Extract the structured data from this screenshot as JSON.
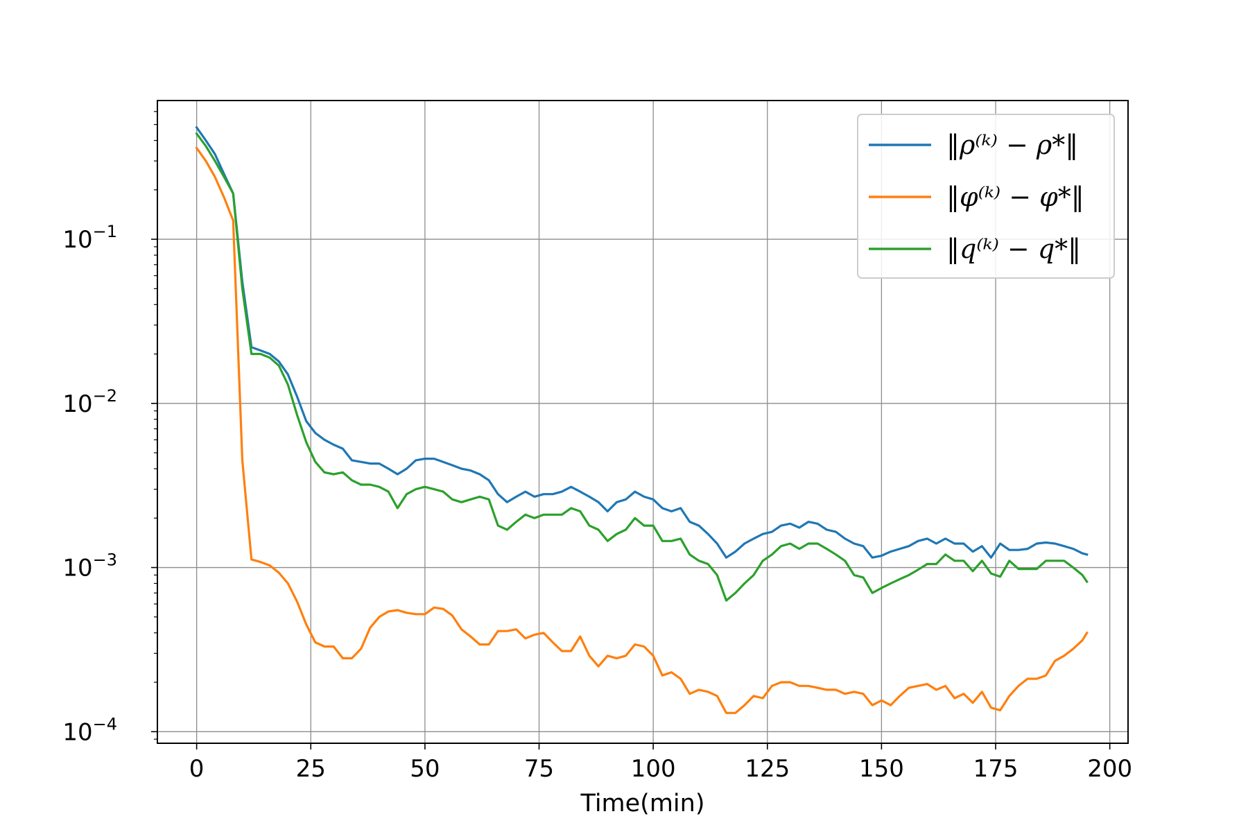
{
  "chart_data": {
    "type": "line",
    "title": "",
    "xlabel": "Time(min)",
    "ylabel": "",
    "xlim": [
      -8.6,
      204
    ],
    "ylim": [
      8.5e-05,
      0.7
    ],
    "yscale": "log",
    "xticks": [
      0,
      25,
      50,
      75,
      100,
      125,
      150,
      175,
      200
    ],
    "yticks": [
      {
        "value": 0.1,
        "base": "10",
        "exp": "−1"
      },
      {
        "value": 0.01,
        "base": "10",
        "exp": "−2"
      },
      {
        "value": 0.001,
        "base": "10",
        "exp": "−3"
      },
      {
        "value": 0.0001,
        "base": "10",
        "exp": "−4"
      }
    ],
    "grid": true,
    "legend_position": "top-right",
    "series": [
      {
        "name": "‖ρ⁽ᵏ⁾ − ρ*‖",
        "color": "#1f77b4",
        "x": [
          0,
          2,
          4,
          6,
          8,
          10,
          12,
          14,
          16,
          18,
          20,
          22,
          24,
          26,
          28,
          30,
          32,
          34,
          36,
          38,
          40,
          42,
          44,
          46,
          48,
          50,
          52,
          54,
          56,
          58,
          60,
          62,
          64,
          66,
          68,
          70,
          72,
          74,
          76,
          78,
          80,
          82,
          84,
          86,
          88,
          90,
          92,
          94,
          96,
          98,
          100,
          102,
          104,
          106,
          108,
          110,
          112,
          114,
          116,
          118,
          120,
          122,
          124,
          126,
          128,
          130,
          132,
          134,
          136,
          138,
          140,
          142,
          144,
          146,
          148,
          150,
          152,
          154,
          156,
          158,
          160,
          162,
          164,
          166,
          168,
          170,
          172,
          174,
          176,
          178,
          180,
          182,
          184,
          186,
          188,
          190,
          192,
          194,
          195
        ],
        "y": [
          0.48,
          0.4,
          0.33,
          0.25,
          0.19,
          0.055,
          0.022,
          0.021,
          0.02,
          0.018,
          0.015,
          0.011,
          0.0078,
          0.0066,
          0.006,
          0.0056,
          0.0053,
          0.0045,
          0.0044,
          0.0043,
          0.0043,
          0.004,
          0.0037,
          0.004,
          0.0045,
          0.0046,
          0.0046,
          0.0044,
          0.0042,
          0.004,
          0.0039,
          0.0037,
          0.0034,
          0.0028,
          0.0025,
          0.0027,
          0.0029,
          0.0027,
          0.0028,
          0.0028,
          0.0029,
          0.0031,
          0.0029,
          0.0027,
          0.0025,
          0.0022,
          0.0025,
          0.0026,
          0.0029,
          0.0027,
          0.0026,
          0.0023,
          0.0022,
          0.0023,
          0.0019,
          0.0018,
          0.0016,
          0.0014,
          0.00115,
          0.00125,
          0.0014,
          0.0015,
          0.0016,
          0.00165,
          0.0018,
          0.00185,
          0.00175,
          0.0019,
          0.00185,
          0.0017,
          0.00165,
          0.0015,
          0.0014,
          0.00135,
          0.00115,
          0.00118,
          0.00125,
          0.0013,
          0.00135,
          0.00145,
          0.0015,
          0.0014,
          0.0015,
          0.0014,
          0.0014,
          0.00125,
          0.00135,
          0.00115,
          0.0014,
          0.00128,
          0.00128,
          0.0013,
          0.0014,
          0.00142,
          0.0014,
          0.00135,
          0.0013,
          0.00122,
          0.0012
        ]
      },
      {
        "name": "‖φ⁽ᵏ⁾ − φ*‖",
        "color": "#ff7f0e",
        "x": [
          0,
          2,
          4,
          6,
          8,
          10,
          12,
          14,
          16,
          18,
          20,
          22,
          24,
          26,
          28,
          30,
          32,
          34,
          36,
          38,
          40,
          42,
          44,
          46,
          48,
          50,
          52,
          54,
          56,
          58,
          60,
          62,
          64,
          66,
          68,
          70,
          72,
          74,
          76,
          78,
          80,
          82,
          84,
          86,
          88,
          90,
          92,
          94,
          96,
          98,
          100,
          102,
          104,
          106,
          108,
          110,
          112,
          114,
          116,
          118,
          120,
          122,
          124,
          126,
          128,
          130,
          132,
          134,
          136,
          138,
          140,
          142,
          144,
          146,
          148,
          150,
          152,
          154,
          156,
          158,
          160,
          162,
          164,
          166,
          168,
          170,
          172,
          174,
          176,
          178,
          180,
          182,
          184,
          186,
          188,
          190,
          192,
          194,
          195
        ],
        "y": [
          0.36,
          0.3,
          0.24,
          0.18,
          0.13,
          0.0045,
          0.00112,
          0.00108,
          0.00103,
          0.00093,
          0.0008,
          0.00062,
          0.00045,
          0.00035,
          0.00033,
          0.00033,
          0.00028,
          0.00028,
          0.00032,
          0.00043,
          0.0005,
          0.00054,
          0.00055,
          0.00053,
          0.00052,
          0.00052,
          0.00057,
          0.00056,
          0.00051,
          0.00042,
          0.00038,
          0.00034,
          0.00034,
          0.00041,
          0.00041,
          0.00042,
          0.00037,
          0.00039,
          0.0004,
          0.00035,
          0.00031,
          0.00031,
          0.00038,
          0.00029,
          0.00025,
          0.00029,
          0.00028,
          0.00029,
          0.00034,
          0.00033,
          0.00029,
          0.00022,
          0.00023,
          0.00021,
          0.00017,
          0.00018,
          0.000175,
          0.000165,
          0.00013,
          0.00013,
          0.000145,
          0.000165,
          0.00016,
          0.00019,
          0.0002,
          0.0002,
          0.00019,
          0.00019,
          0.000185,
          0.00018,
          0.00018,
          0.00017,
          0.000175,
          0.00017,
          0.000145,
          0.000155,
          0.000145,
          0.000165,
          0.000185,
          0.00019,
          0.000195,
          0.00018,
          0.00019,
          0.00016,
          0.00017,
          0.00015,
          0.000175,
          0.00014,
          0.000135,
          0.000165,
          0.00019,
          0.00021,
          0.00021,
          0.00022,
          0.00027,
          0.00029,
          0.00032,
          0.00036,
          0.0004
        ]
      },
      {
        "name": "‖q⁽ᵏ⁾ − q*‖",
        "color": "#2ca02c",
        "x": [
          0,
          2,
          4,
          6,
          8,
          10,
          12,
          14,
          16,
          18,
          20,
          22,
          24,
          26,
          28,
          30,
          32,
          34,
          36,
          38,
          40,
          42,
          44,
          46,
          48,
          50,
          52,
          54,
          56,
          58,
          60,
          62,
          64,
          66,
          68,
          70,
          72,
          74,
          76,
          78,
          80,
          82,
          84,
          86,
          88,
          90,
          92,
          94,
          96,
          98,
          100,
          102,
          104,
          106,
          108,
          110,
          112,
          114,
          116,
          118,
          120,
          122,
          124,
          126,
          128,
          130,
          132,
          134,
          136,
          138,
          140,
          142,
          144,
          146,
          148,
          150,
          152,
          154,
          156,
          158,
          160,
          162,
          164,
          166,
          168,
          170,
          172,
          174,
          176,
          178,
          180,
          182,
          184,
          186,
          188,
          190,
          192,
          194,
          195
        ],
        "y": [
          0.44,
          0.37,
          0.3,
          0.24,
          0.19,
          0.05,
          0.02,
          0.02,
          0.019,
          0.017,
          0.013,
          0.0085,
          0.0058,
          0.0044,
          0.0038,
          0.0037,
          0.0038,
          0.0034,
          0.0032,
          0.0032,
          0.0031,
          0.0029,
          0.0023,
          0.0028,
          0.003,
          0.0031,
          0.003,
          0.0029,
          0.0026,
          0.0025,
          0.0026,
          0.0027,
          0.0026,
          0.0018,
          0.0017,
          0.0019,
          0.0021,
          0.002,
          0.0021,
          0.0021,
          0.0021,
          0.0023,
          0.0022,
          0.0018,
          0.0017,
          0.00145,
          0.0016,
          0.0017,
          0.002,
          0.0018,
          0.0018,
          0.00145,
          0.00145,
          0.0015,
          0.0012,
          0.0011,
          0.00105,
          0.0009,
          0.00063,
          0.0007,
          0.0008,
          0.0009,
          0.0011,
          0.0012,
          0.00135,
          0.0014,
          0.0013,
          0.0014,
          0.0014,
          0.0013,
          0.0012,
          0.0011,
          0.0009,
          0.00087,
          0.0007,
          0.00075,
          0.0008,
          0.00085,
          0.0009,
          0.00097,
          0.00105,
          0.00105,
          0.0012,
          0.0011,
          0.0011,
          0.00095,
          0.0011,
          0.00092,
          0.00088,
          0.0011,
          0.00098,
          0.00098,
          0.00098,
          0.0011,
          0.0011,
          0.0011,
          0.001,
          0.0009,
          0.00082
        ]
      }
    ]
  }
}
